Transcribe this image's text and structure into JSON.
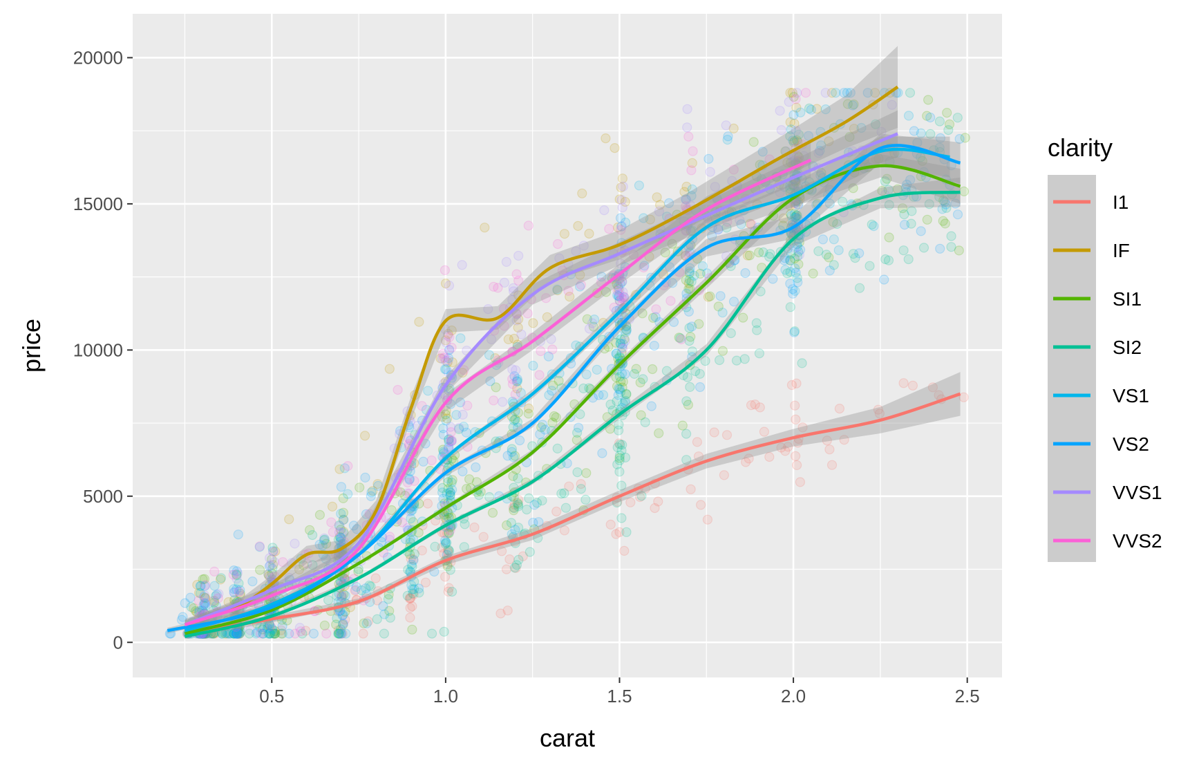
{
  "chart_data": {
    "type": "scatter",
    "title": "",
    "xlabel": "carat",
    "ylabel": "price",
    "xlim": [
      0.1,
      2.6
    ],
    "ylim": [
      -1200,
      21500
    ],
    "x_ticks": [
      0.5,
      1.0,
      1.5,
      2.0,
      2.5
    ],
    "x_tick_labels": [
      "0.5",
      "1.0",
      "1.5",
      "2.0",
      "2.5"
    ],
    "y_ticks": [
      0,
      5000,
      10000,
      15000,
      20000
    ],
    "y_tick_labels": [
      "0",
      "5000",
      "10000",
      "15000",
      "20000"
    ],
    "grid": true,
    "legend": {
      "title": "clarity",
      "position": "right"
    },
    "smooth_method": "loess",
    "point_alpha": 0.15,
    "series": [
      {
        "name": "I1",
        "color": "#F8766D",
        "smooth": {
          "x": [
            0.3,
            0.5,
            0.75,
            1.0,
            1.25,
            1.5,
            1.75,
            2.0,
            2.25,
            2.48
          ],
          "y": [
            400,
            800,
            1400,
            2800,
            3700,
            5000,
            6200,
            7000,
            7600,
            8500
          ]
        },
        "se": [
          150,
          120,
          100,
          150,
          200,
          200,
          250,
          300,
          450,
          750
        ]
      },
      {
        "name": "IF",
        "color": "#C49A00",
        "smooth": {
          "x": [
            0.25,
            0.4,
            0.5,
            0.6,
            0.7,
            0.8,
            0.9,
            1.0,
            1.15,
            1.3,
            1.5,
            1.7,
            1.95,
            2.15,
            2.3
          ],
          "y": [
            600,
            1200,
            2000,
            3000,
            3200,
            4500,
            8000,
            11000,
            11100,
            12800,
            13600,
            14800,
            16500,
            17800,
            19000
          ]
        },
        "se": [
          200,
          200,
          300,
          300,
          300,
          350,
          400,
          400,
          400,
          450,
          500,
          600,
          700,
          900,
          1400
        ]
      },
      {
        "name": "SI1",
        "color": "#53B400",
        "smooth": {
          "x": [
            0.25,
            0.5,
            0.75,
            1.0,
            1.25,
            1.5,
            1.75,
            2.0,
            2.25,
            2.48
          ],
          "y": [
            300,
            1100,
            2700,
            4600,
            6500,
            9500,
            12300,
            15200,
            16300,
            15600
          ]
        },
        "se": [
          80,
          60,
          50,
          80,
          100,
          150,
          200,
          300,
          400,
          600
        ]
      },
      {
        "name": "SI2",
        "color": "#00C094",
        "smooth": {
          "x": [
            0.25,
            0.5,
            0.75,
            1.0,
            1.25,
            1.5,
            1.75,
            2.0,
            2.25,
            2.48
          ],
          "y": [
            200,
            900,
            2200,
            4000,
            5500,
            7800,
            10000,
            13800,
            15200,
            15400
          ]
        },
        "se": [
          80,
          60,
          50,
          80,
          100,
          150,
          200,
          250,
          350,
          500
        ]
      },
      {
        "name": "VS1",
        "color": "#00B6EB",
        "smooth": {
          "x": [
            0.25,
            0.5,
            0.75,
            1.0,
            1.25,
            1.5,
            1.75,
            2.0,
            2.25,
            2.45
          ],
          "y": [
            400,
            1300,
            3000,
            6300,
            8500,
            11300,
            14200,
            15300,
            16800,
            16600
          ]
        },
        "se": [
          100,
          80,
          80,
          120,
          150,
          200,
          300,
          400,
          500,
          700
        ]
      },
      {
        "name": "VS2",
        "color": "#06A4FF",
        "smooth": {
          "x": [
            0.2,
            0.5,
            0.75,
            1.0,
            1.25,
            1.5,
            1.75,
            2.0,
            2.25,
            2.48
          ],
          "y": [
            400,
            1200,
            3000,
            5800,
            7500,
            10800,
            13500,
            14200,
            16900,
            16400
          ]
        },
        "se": [
          100,
          80,
          80,
          120,
          150,
          200,
          300,
          400,
          500,
          700
        ]
      },
      {
        "name": "VVS1",
        "color": "#A58AFF",
        "smooth": {
          "x": [
            0.25,
            0.5,
            0.75,
            1.0,
            1.25,
            1.5,
            1.75,
            2.0,
            2.3
          ],
          "y": [
            600,
            1800,
            3400,
            8800,
            11900,
            13300,
            14600,
            15900,
            17400
          ]
        },
        "se": [
          150,
          150,
          200,
          300,
          350,
          400,
          500,
          600,
          800
        ]
      },
      {
        "name": "VVS2",
        "color": "#FB61D7",
        "smooth": {
          "x": [
            0.25,
            0.5,
            0.75,
            1.0,
            1.25,
            1.5,
            1.75,
            2.05
          ],
          "y": [
            600,
            1600,
            3200,
            8200,
            10300,
            12600,
            14800,
            16500
          ]
        },
        "se": [
          150,
          150,
          200,
          300,
          300,
          350,
          450,
          600
        ]
      }
    ],
    "point_clusters": [
      {
        "series": "I1",
        "x_range": [
          0.3,
          2.5
        ],
        "spread": 900,
        "count": 140
      },
      {
        "series": "IF",
        "x_range": [
          0.25,
          2.3
        ],
        "spread": 1800,
        "count": 140
      },
      {
        "series": "SI1",
        "x_range": [
          0.25,
          2.5
        ],
        "spread": 1600,
        "count": 320
      },
      {
        "series": "SI2",
        "x_range": [
          0.25,
          2.5
        ],
        "spread": 1700,
        "count": 340
      },
      {
        "series": "VS1",
        "x_range": [
          0.25,
          2.45
        ],
        "spread": 1800,
        "count": 240
      },
      {
        "series": "VS2",
        "x_range": [
          0.2,
          2.48
        ],
        "spread": 1800,
        "count": 300
      },
      {
        "series": "VVS1",
        "x_range": [
          0.25,
          2.3
        ],
        "spread": 1600,
        "count": 180
      },
      {
        "series": "VVS2",
        "x_range": [
          0.25,
          2.05
        ],
        "spread": 1600,
        "count": 180
      }
    ]
  }
}
